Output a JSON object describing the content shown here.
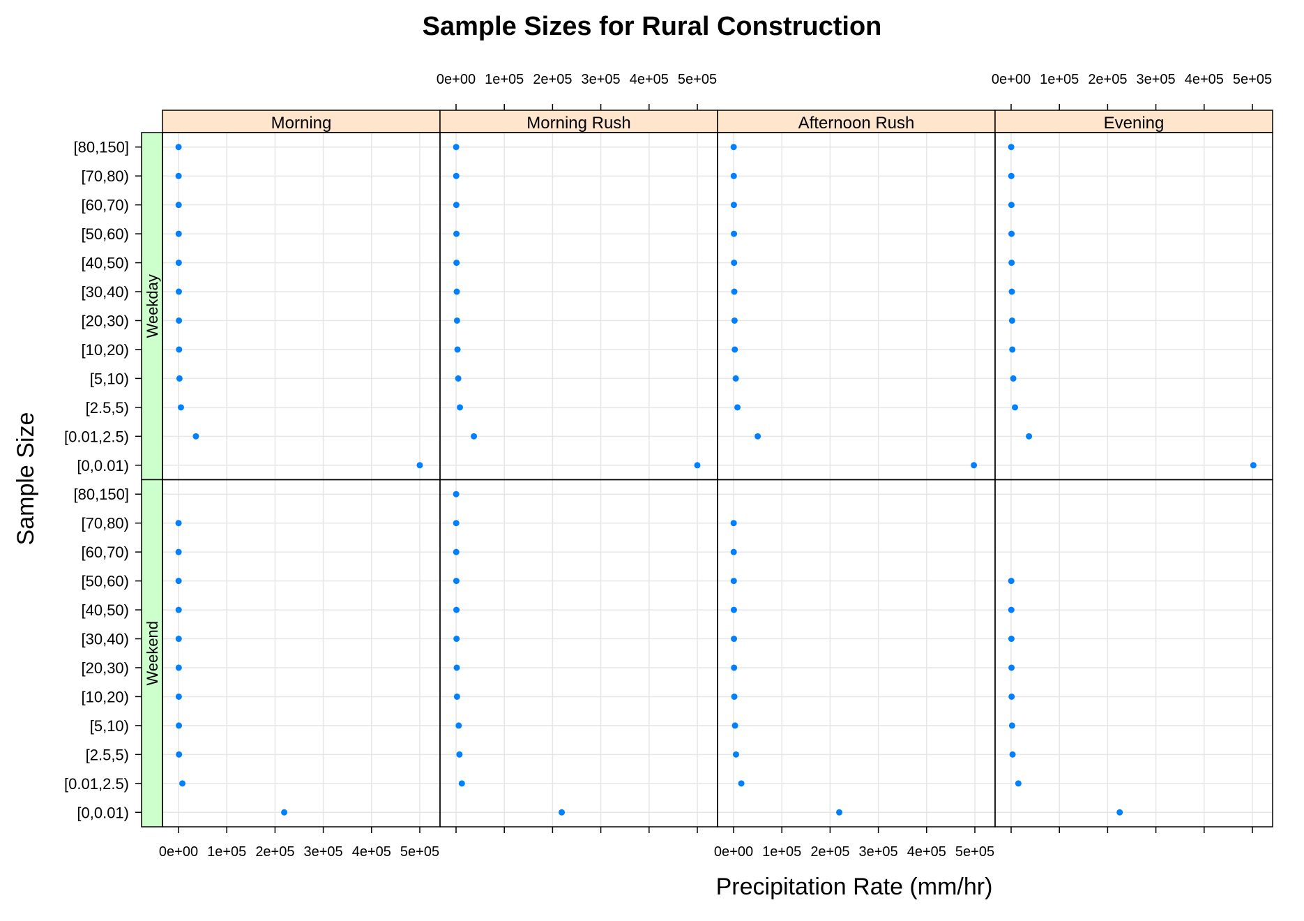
{
  "chart_data": {
    "type": "scatter",
    "title": "Sample Sizes for Rural Construction",
    "xlabel": "Precipitation Rate (mm/hr)",
    "ylabel": "Sample Size",
    "xlim": [
      0,
      500000
    ],
    "x_ticks": [
      0,
      100000,
      200000,
      300000,
      400000,
      500000
    ],
    "x_tick_labels": [
      "0e+00",
      "1e+05",
      "2e+05",
      "3e+05",
      "4e+05",
      "5e+05"
    ],
    "categories": [
      "[0,0.01)",
      "[0.01,2.5)",
      "[2.5,5)",
      "[5,10)",
      "[10,20)",
      "[20,30)",
      "[30,40)",
      "[40,50)",
      "[50,60)",
      "[60,70)",
      "[70,80)",
      "[80,150]"
    ],
    "columns": [
      "Morning",
      "Morning Rush",
      "Afternoon Rush",
      "Evening"
    ],
    "rows": [
      "Weekday",
      "Weekend"
    ],
    "grid": true,
    "point_color": "#0080FF",
    "strip_colors": {
      "columns": "#FFE5CC",
      "rows": "#CCFFCC"
    },
    "panels": [
      {
        "row": "Weekday",
        "column": "Morning",
        "values": [
          500000,
          36000,
          5000,
          2000,
          1200,
          900,
          700,
          500,
          400,
          300,
          200,
          100
        ]
      },
      {
        "row": "Weekday",
        "column": "Morning Rush",
        "values": [
          500000,
          37000,
          8000,
          4500,
          3000,
          2000,
          1500,
          1000,
          800,
          600,
          400,
          200
        ]
      },
      {
        "row": "Weekday",
        "column": "Afternoon Rush",
        "values": [
          498000,
          50000,
          8000,
          4500,
          2500,
          2000,
          1500,
          1000,
          800,
          600,
          400,
          200
        ]
      },
      {
        "row": "Weekday",
        "column": "Evening",
        "values": [
          502000,
          37000,
          8000,
          4500,
          2500,
          2000,
          1500,
          1000,
          800,
          600,
          400,
          200
        ]
      },
      {
        "row": "Weekend",
        "column": "Morning",
        "values": [
          219000,
          8000,
          1000,
          800,
          600,
          500,
          400,
          300,
          200,
          150,
          100,
          null
        ]
      },
      {
        "row": "Weekend",
        "column": "Morning Rush",
        "values": [
          219000,
          12000,
          7000,
          5500,
          2000,
          1500,
          1000,
          800,
          600,
          400,
          300,
          200
        ]
      },
      {
        "row": "Weekend",
        "column": "Afternoon Rush",
        "values": [
          219000,
          16000,
          5000,
          3000,
          1500,
          1000,
          800,
          600,
          400,
          300,
          200,
          null
        ]
      },
      {
        "row": "Weekend",
        "column": "Evening",
        "values": [
          225000,
          15000,
          3000,
          2000,
          1000,
          800,
          600,
          400,
          300,
          null,
          null,
          null
        ]
      }
    ]
  }
}
